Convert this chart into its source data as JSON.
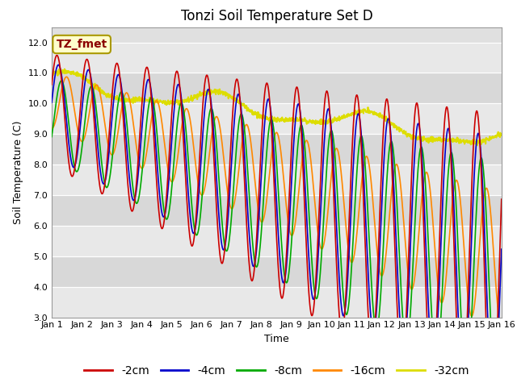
{
  "title": "Tonzi Soil Temperature Set D",
  "xlabel": "Time",
  "ylabel": "Soil Temperature (C)",
  "annotation": "TZ_fmet",
  "ylim": [
    3.0,
    12.5
  ],
  "xlim": [
    0,
    15
  ],
  "xtick_labels": [
    "Jan 1",
    "Jan 2",
    "Jan 3",
    "Jan 4",
    "Jan 5",
    "Jan 6",
    "Jan 7",
    "Jan 8",
    "Jan 9",
    "Jan 10",
    "Jan 11",
    "Jan 12",
    "Jan 13",
    "Jan 14",
    "Jan 15",
    "Jan 16"
  ],
  "series_colors": [
    "#cc0000",
    "#0000cc",
    "#00aa00",
    "#ff8800",
    "#dddd00"
  ],
  "series_labels": [
    "-2cm",
    "-4cm",
    "-8cm",
    "-16cm",
    "-32cm"
  ],
  "title_fontsize": 12,
  "legend_fontsize": 10,
  "axes_label_fontsize": 9,
  "tick_fontsize": 8,
  "yticks": [
    3.0,
    4.0,
    5.0,
    6.0,
    7.0,
    8.0,
    9.0,
    10.0,
    11.0,
    12.0
  ],
  "band_colors": [
    "#dcdcdc",
    "#e8e8e8",
    "#dcdcdc",
    "#e8e8e8",
    "#dcdcdc",
    "#e8e8e8",
    "#dcdcdc",
    "#e8e8e8",
    "#dcdcdc"
  ],
  "plot_bg": "#e0e0e0"
}
